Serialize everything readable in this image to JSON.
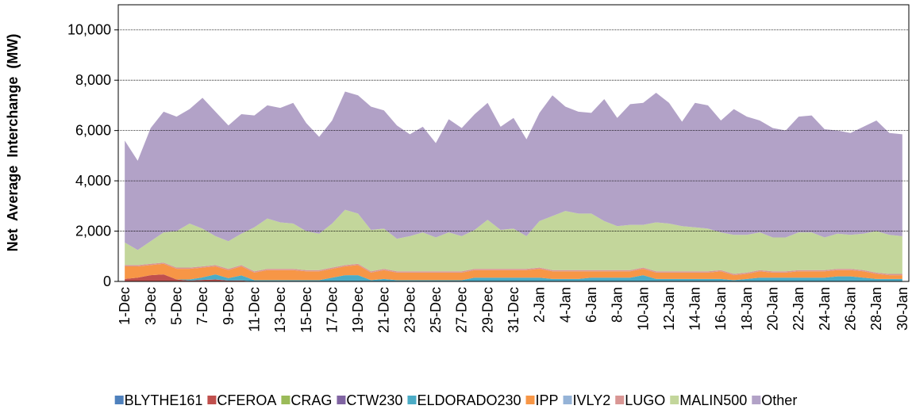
{
  "chart_data": {
    "type": "stacked_area",
    "y_label": "Net  Average  Interchange  (MW)",
    "categories": [
      "1-Dec",
      null,
      "3-Dec",
      null,
      "5-Dec",
      null,
      "7-Dec",
      null,
      "9-Dec",
      null,
      "11-Dec",
      null,
      "13-Dec",
      null,
      "15-Dec",
      null,
      "17-Dec",
      null,
      "19-Dec",
      null,
      "21-Dec",
      null,
      "23-Dec",
      null,
      "25-Dec",
      null,
      "27-Dec",
      null,
      "29-Dec",
      null,
      "31-Dec",
      null,
      "2-Jan",
      null,
      "4-Jan",
      null,
      "6-Jan",
      null,
      "8-Jan",
      null,
      "10-Jan",
      null,
      "12-Jan",
      null,
      "14-Jan",
      null,
      "16-Jan",
      null,
      "18-Jan",
      null,
      "20-Jan",
      null,
      "22-Jan",
      null,
      "24-Jan",
      null,
      "26-Jan",
      null,
      "28-Jan",
      null,
      "30-Jan"
    ],
    "ylim": [
      0,
      11000
    ],
    "yticks": [
      0,
      {
        "value": 2000,
        "label": "2,000"
      },
      {
        "value": 4000,
        "label": "4,000"
      },
      {
        "value": 6000,
        "label": "6,000"
      },
      {
        "value": 8000,
        "label": "8,000"
      },
      {
        "value": 10000,
        "label": "10,000"
      }
    ],
    "grid": true,
    "legend": "bottom",
    "series": [
      {
        "name": "BLYTHE161",
        "color": "#4f81bd",
        "values": [
          0,
          0,
          0,
          0,
          0,
          0,
          0,
          0,
          0,
          0,
          0,
          0,
          0,
          0,
          0,
          0,
          0,
          0,
          0,
          0,
          0,
          0,
          0,
          0,
          0,
          0,
          0,
          0,
          0,
          0,
          0,
          0,
          0,
          0,
          0,
          0,
          0,
          0,
          0,
          0,
          0,
          0,
          0,
          0,
          0,
          0,
          0,
          0,
          0,
          0,
          0,
          0,
          0,
          0,
          0,
          0,
          0,
          0,
          0,
          0,
          0
        ]
      },
      {
        "name": "CFEROA",
        "color": "#c0504d",
        "values": [
          100,
          150,
          250,
          280,
          80,
          30,
          60,
          80,
          30,
          40,
          0,
          0,
          0,
          0,
          0,
          0,
          0,
          0,
          0,
          0,
          0,
          0,
          0,
          0,
          0,
          0,
          0,
          0,
          0,
          0,
          0,
          0,
          0,
          0,
          0,
          0,
          0,
          0,
          0,
          0,
          0,
          0,
          0,
          0,
          0,
          0,
          0,
          0,
          0,
          0,
          0,
          0,
          0,
          0,
          0,
          0,
          0,
          0,
          0,
          0,
          0
        ]
      },
      {
        "name": "CRAG",
        "color": "#9bbb59",
        "values": [
          0,
          0,
          0,
          0,
          0,
          0,
          0,
          0,
          0,
          0,
          0,
          0,
          0,
          0,
          0,
          0,
          0,
          0,
          0,
          0,
          0,
          0,
          0,
          0,
          0,
          0,
          0,
          0,
          0,
          0,
          0,
          0,
          0,
          0,
          0,
          0,
          0,
          0,
          0,
          0,
          0,
          0,
          0,
          0,
          0,
          0,
          0,
          0,
          0,
          0,
          0,
          0,
          0,
          0,
          0,
          0,
          0,
          0,
          0,
          0,
          0
        ]
      },
      {
        "name": "CTW230",
        "color": "#8064a2",
        "values": [
          0,
          0,
          0,
          0,
          0,
          0,
          0,
          0,
          0,
          0,
          0,
          0,
          0,
          0,
          0,
          0,
          0,
          0,
          0,
          0,
          0,
          0,
          0,
          0,
          0,
          0,
          0,
          0,
          0,
          0,
          0,
          0,
          0,
          0,
          0,
          0,
          0,
          0,
          0,
          0,
          0,
          0,
          0,
          0,
          0,
          0,
          0,
          0,
          0,
          0,
          0,
          0,
          0,
          0,
          0,
          0,
          0,
          0,
          0,
          0,
          0
        ]
      },
      {
        "name": "ELDORADO230",
        "color": "#4bacc6",
        "values": [
          0,
          0,
          0,
          0,
          0,
          50,
          100,
          200,
          100,
          200,
          50,
          50,
          50,
          50,
          50,
          50,
          150,
          250,
          250,
          50,
          100,
          50,
          50,
          50,
          50,
          50,
          50,
          150,
          150,
          150,
          150,
          150,
          150,
          100,
          100,
          100,
          150,
          150,
          150,
          150,
          250,
          100,
          100,
          100,
          100,
          100,
          100,
          50,
          100,
          150,
          150,
          150,
          150,
          150,
          150,
          200,
          200,
          150,
          100,
          100,
          100
        ]
      },
      {
        "name": "IPP",
        "color": "#f79646",
        "values": [
          500,
          450,
          400,
          420,
          420,
          420,
          390,
          320,
          320,
          360,
          300,
          400,
          400,
          400,
          350,
          350,
          350,
          350,
          400,
          300,
          350,
          300,
          300,
          300,
          300,
          300,
          300,
          300,
          300,
          300,
          300,
          300,
          350,
          300,
          300,
          300,
          250,
          250,
          250,
          250,
          250,
          250,
          250,
          250,
          250,
          250,
          300,
          200,
          200,
          250,
          200,
          200,
          250,
          250,
          250,
          250,
          250,
          250,
          200,
          150,
          150
        ]
      },
      {
        "name": "IVLY2",
        "color": "#95b3d7",
        "values": [
          0,
          0,
          0,
          0,
          0,
          0,
          0,
          0,
          0,
          0,
          0,
          0,
          0,
          0,
          0,
          0,
          0,
          0,
          0,
          0,
          0,
          0,
          0,
          0,
          0,
          0,
          0,
          0,
          0,
          0,
          0,
          0,
          0,
          0,
          0,
          0,
          0,
          0,
          0,
          0,
          0,
          0,
          0,
          0,
          0,
          0,
          0,
          0,
          0,
          0,
          0,
          0,
          0,
          0,
          0,
          0,
          0,
          0,
          0,
          0,
          0
        ]
      },
      {
        "name": "LUGO",
        "color": "#d99694",
        "values": [
          50,
          50,
          50,
          50,
          50,
          50,
          50,
          50,
          50,
          50,
          50,
          50,
          50,
          50,
          50,
          50,
          50,
          50,
          50,
          50,
          50,
          50,
          50,
          50,
          50,
          50,
          50,
          50,
          50,
          50,
          50,
          50,
          50,
          50,
          50,
          50,
          50,
          50,
          50,
          50,
          50,
          50,
          50,
          50,
          50,
          50,
          50,
          50,
          50,
          50,
          50,
          50,
          50,
          50,
          50,
          50,
          50,
          50,
          50,
          50,
          50
        ]
      },
      {
        "name": "MALIN500",
        "color": "#c3d69b",
        "values": [
          900,
          600,
          900,
          1200,
          1450,
          1750,
          1500,
          1150,
          1100,
          1250,
          1750,
          2000,
          1850,
          1800,
          1550,
          1450,
          1750,
          2200,
          2000,
          1650,
          1600,
          1300,
          1400,
          1550,
          1350,
          1550,
          1400,
          1550,
          1950,
          1550,
          1600,
          1300,
          1850,
          2150,
          2350,
          2250,
          2250,
          1950,
          1750,
          1800,
          1700,
          1950,
          1900,
          1800,
          1750,
          1700,
          1500,
          1550,
          1500,
          1500,
          1350,
          1350,
          1500,
          1500,
          1300,
          1400,
          1350,
          1450,
          1650,
          1550,
          1500
        ]
      },
      {
        "name": "Other",
        "color": "#b2a2c7",
        "values": [
          4050,
          3550,
          4500,
          4800,
          4550,
          4550,
          5200,
          4950,
          4600,
          4750,
          4450,
          4500,
          4550,
          4800,
          4300,
          3850,
          4100,
          4700,
          4700,
          4900,
          4700,
          4500,
          4050,
          4200,
          3750,
          4500,
          4300,
          4600,
          4650,
          4100,
          4400,
          3850,
          4300,
          4800,
          4150,
          4050,
          4000,
          4850,
          4300,
          4800,
          4850,
          5150,
          4800,
          4150,
          4950,
          4900,
          4450,
          5000,
          4700,
          4450,
          4350,
          4250,
          4600,
          4650,
          4300,
          4100,
          4050,
          4250,
          4400,
          4050,
          4050
        ]
      }
    ]
  }
}
